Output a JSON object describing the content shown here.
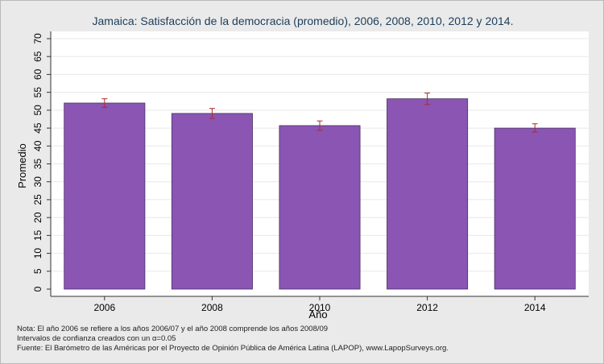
{
  "chart_data": {
    "type": "bar",
    "title": "Jamaica: Satisfacción de la democracia (promedio), 2006, 2008, 2010, 2012 y 2014.",
    "xlabel": "Año",
    "ylabel": "Promedio",
    "categories": [
      "2006",
      "2008",
      "2010",
      "2012",
      "2014"
    ],
    "values": [
      52.0,
      49.1,
      45.7,
      53.2,
      45.0
    ],
    "error_low": [
      50.8,
      47.7,
      44.4,
      51.6,
      43.9
    ],
    "error_high": [
      53.2,
      50.5,
      47.0,
      54.8,
      46.2
    ],
    "ylim": [
      0,
      70
    ],
    "yticks": [
      0,
      5,
      10,
      15,
      20,
      25,
      30,
      35,
      40,
      45,
      50,
      55,
      60,
      65,
      70
    ],
    "grid": true,
    "colors": {
      "bar": "#8a55b3",
      "bar_edge": "#4a2f63",
      "error_bar": "#b02a2a",
      "plot_background": "#ffffff",
      "grid": "#e8e8e8",
      "title": "#1c3d5a"
    }
  },
  "notes": {
    "line1": "Nota: El año 2006 se refiere a los años 2006/07 y el año 2008 comprende los años 2008/09",
    "line2": "Intervalos de confianza creados con un α=0.05",
    "line3": "Fuente: El Barómetro de las Américas por el Proyecto de Opinión Pública de América Latina (LAPOP), www.LapopSurveys.org."
  }
}
